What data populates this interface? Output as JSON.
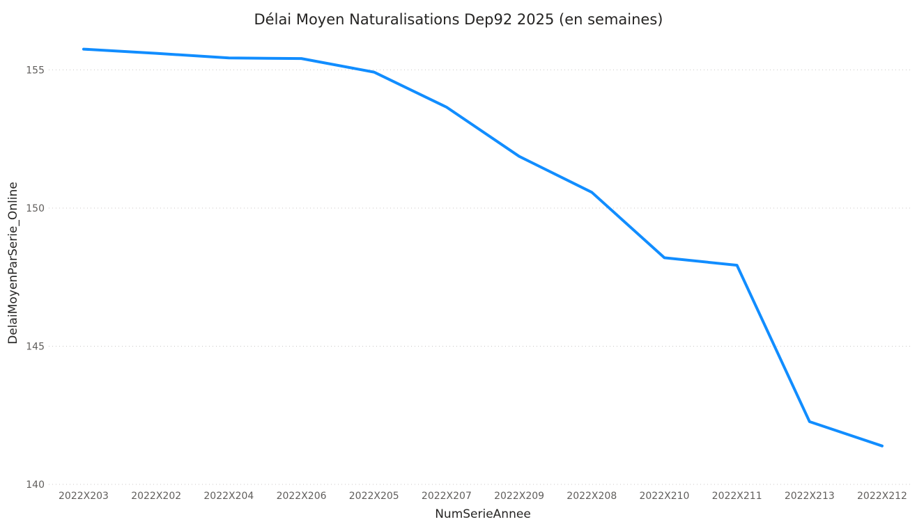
{
  "chart_data": {
    "type": "line",
    "title": "Délai Moyen Naturalisations Dep92 2025 (en semaines)",
    "xlabel": "NumSerieAnnee",
    "ylabel": "DelaiMoyenParSerie_Online",
    "categories": [
      "2022X203",
      "2022X202",
      "2022X204",
      "2022X206",
      "2022X205",
      "2022X207",
      "2022X209",
      "2022X208",
      "2022X210",
      "2022X211",
      "2022X213",
      "2022X212"
    ],
    "series": [
      {
        "values": [
          155.75,
          155.6,
          155.43,
          155.41,
          154.92,
          153.65,
          151.87,
          150.57,
          148.2,
          147.93,
          142.27,
          141.39
        ]
      }
    ],
    "ylim": [
      140,
      157
    ],
    "yticks": [
      140,
      145,
      150,
      155
    ],
    "grid": true,
    "legend": "none",
    "colors": {
      "line": "#118DFF",
      "grid": "#C8C6C4",
      "title": "#252423",
      "tick": "#605E5C"
    }
  }
}
